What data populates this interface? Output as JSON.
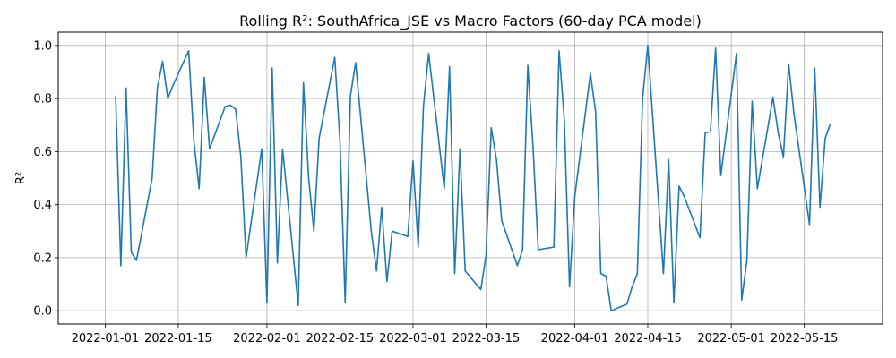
{
  "chart_data": {
    "type": "line",
    "title": "Rolling R²: SouthAfrica_JSE vs Macro Factors (60-day PCA model)",
    "xlabel": "",
    "ylabel": "R²",
    "x_type": "date",
    "xlim": [
      "2021-12-23",
      "2022-05-30"
    ],
    "ylim": [
      -0.05,
      1.05
    ],
    "grid": true,
    "x_ticks": [
      "2022-01-01",
      "2022-01-15",
      "2022-02-01",
      "2022-02-15",
      "2022-03-01",
      "2022-03-15",
      "2022-04-01",
      "2022-04-15",
      "2022-05-01",
      "2022-05-15"
    ],
    "y_ticks": [
      0.0,
      0.2,
      0.4,
      0.6,
      0.8,
      1.0
    ],
    "y_tick_labels": [
      "0.0",
      "0.2",
      "0.4",
      "0.6",
      "0.8",
      "1.0"
    ],
    "line_color": "#1f77b4",
    "series": [
      {
        "x": [
          "2022-01-03",
          "2022-01-04",
          "2022-01-05",
          "2022-01-06",
          "2022-01-07",
          "2022-01-10",
          "2022-01-11",
          "2022-01-12",
          "2022-01-13",
          "2022-01-14",
          "2022-01-17",
          "2022-01-18",
          "2022-01-19",
          "2022-01-20",
          "2022-01-21",
          "2022-01-24",
          "2022-01-25",
          "2022-01-26",
          "2022-01-27",
          "2022-01-28",
          "2022-01-31",
          "2022-02-01",
          "2022-02-02",
          "2022-02-03",
          "2022-02-04",
          "2022-02-07",
          "2022-02-08",
          "2022-02-09",
          "2022-02-10",
          "2022-02-11",
          "2022-02-14",
          "2022-02-15",
          "2022-02-16",
          "2022-02-17",
          "2022-02-18",
          "2022-02-21",
          "2022-02-22",
          "2022-02-23",
          "2022-02-24",
          "2022-02-25",
          "2022-02-28",
          "2022-03-01",
          "2022-03-02",
          "2022-03-03",
          "2022-03-04",
          "2022-03-07",
          "2022-03-08",
          "2022-03-09",
          "2022-03-10",
          "2022-03-11",
          "2022-03-14",
          "2022-03-15",
          "2022-03-16",
          "2022-03-17",
          "2022-03-18",
          "2022-03-21",
          "2022-03-22",
          "2022-03-23",
          "2022-03-24",
          "2022-03-25",
          "2022-03-28",
          "2022-03-29",
          "2022-03-30",
          "2022-03-31",
          "2022-04-01",
          "2022-04-04",
          "2022-04-05",
          "2022-04-06",
          "2022-04-07",
          "2022-04-08",
          "2022-04-11",
          "2022-04-12",
          "2022-04-13",
          "2022-04-14",
          "2022-04-15",
          "2022-04-18",
          "2022-04-19",
          "2022-04-20",
          "2022-04-21",
          "2022-04-22",
          "2022-04-25",
          "2022-04-26",
          "2022-04-27",
          "2022-04-28",
          "2022-04-29",
          "2022-05-02",
          "2022-05-03",
          "2022-05-04",
          "2022-05-05",
          "2022-05-06",
          "2022-05-09",
          "2022-05-10",
          "2022-05-11",
          "2022-05-12",
          "2022-05-13",
          "2022-05-16",
          "2022-05-17",
          "2022-05-18",
          "2022-05-19",
          "2022-05-20"
        ],
        "y": [
          0.81,
          0.17,
          0.84,
          0.22,
          0.19,
          0.5,
          0.84,
          0.94,
          0.8,
          0.85,
          0.98,
          0.64,
          0.46,
          0.88,
          0.61,
          0.77,
          0.775,
          0.76,
          0.58,
          0.2,
          0.61,
          0.03,
          0.915,
          0.18,
          0.61,
          0.02,
          0.86,
          0.5,
          0.3,
          0.65,
          0.955,
          0.64,
          0.03,
          0.81,
          0.935,
          0.3,
          0.15,
          0.39,
          0.11,
          0.3,
          0.28,
          0.565,
          0.24,
          0.77,
          0.97,
          0.46,
          0.92,
          0.14,
          0.61,
          0.15,
          0.08,
          0.21,
          0.69,
          0.57,
          0.34,
          0.17,
          0.23,
          0.925,
          0.62,
          0.23,
          0.24,
          0.98,
          0.72,
          0.09,
          0.43,
          0.895,
          0.75,
          0.14,
          0.13,
          0.0,
          0.025,
          0.09,
          0.14,
          0.8,
          1.0,
          0.14,
          0.57,
          0.03,
          0.47,
          0.43,
          0.275,
          0.67,
          0.675,
          0.99,
          0.51,
          0.97,
          0.04,
          0.19,
          0.79,
          0.46,
          0.805,
          0.67,
          0.58,
          0.93,
          0.745,
          0.325,
          0.915,
          0.39,
          0.65,
          0.705
        ]
      }
    ]
  }
}
